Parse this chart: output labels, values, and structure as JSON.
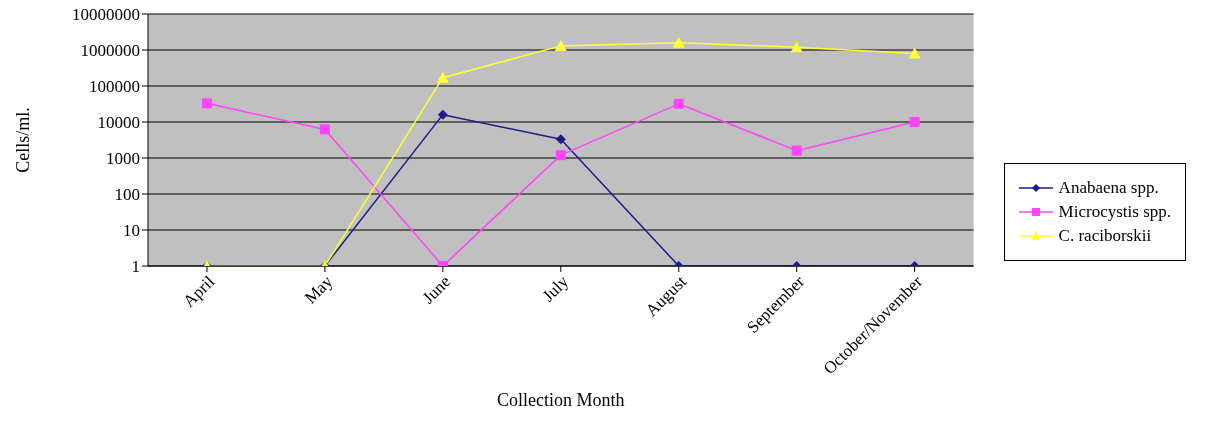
{
  "chart_data": {
    "type": "line",
    "xlabel": "Collection Month",
    "ylabel": "Cells/ml.",
    "categories": [
      "April",
      "May",
      "June",
      "July",
      "August",
      "September",
      "October/November"
    ],
    "series": [
      {
        "name": "Anabaena spp.",
        "color": "#1c1c8c",
        "marker": "diamond",
        "values": [
          1,
          1,
          16000,
          3300,
          1,
          1,
          1
        ]
      },
      {
        "name": "Microcystis spp.",
        "color": "#ff44ff",
        "marker": "square",
        "values": [
          33000,
          6200,
          1,
          1200,
          32000,
          1600,
          10000
        ]
      },
      {
        "name": "C. raciborskii",
        "color": "#ffff33",
        "marker": "triangle",
        "values": [
          1,
          1,
          170000,
          1300000,
          1600000,
          1200000,
          800000
        ]
      }
    ],
    "log": "y",
    "ylim": [
      1,
      10000000
    ],
    "yticks": [
      1,
      10,
      100,
      1000,
      10000,
      100000,
      1000000,
      10000000
    ],
    "grid": "y",
    "legend": "right"
  }
}
